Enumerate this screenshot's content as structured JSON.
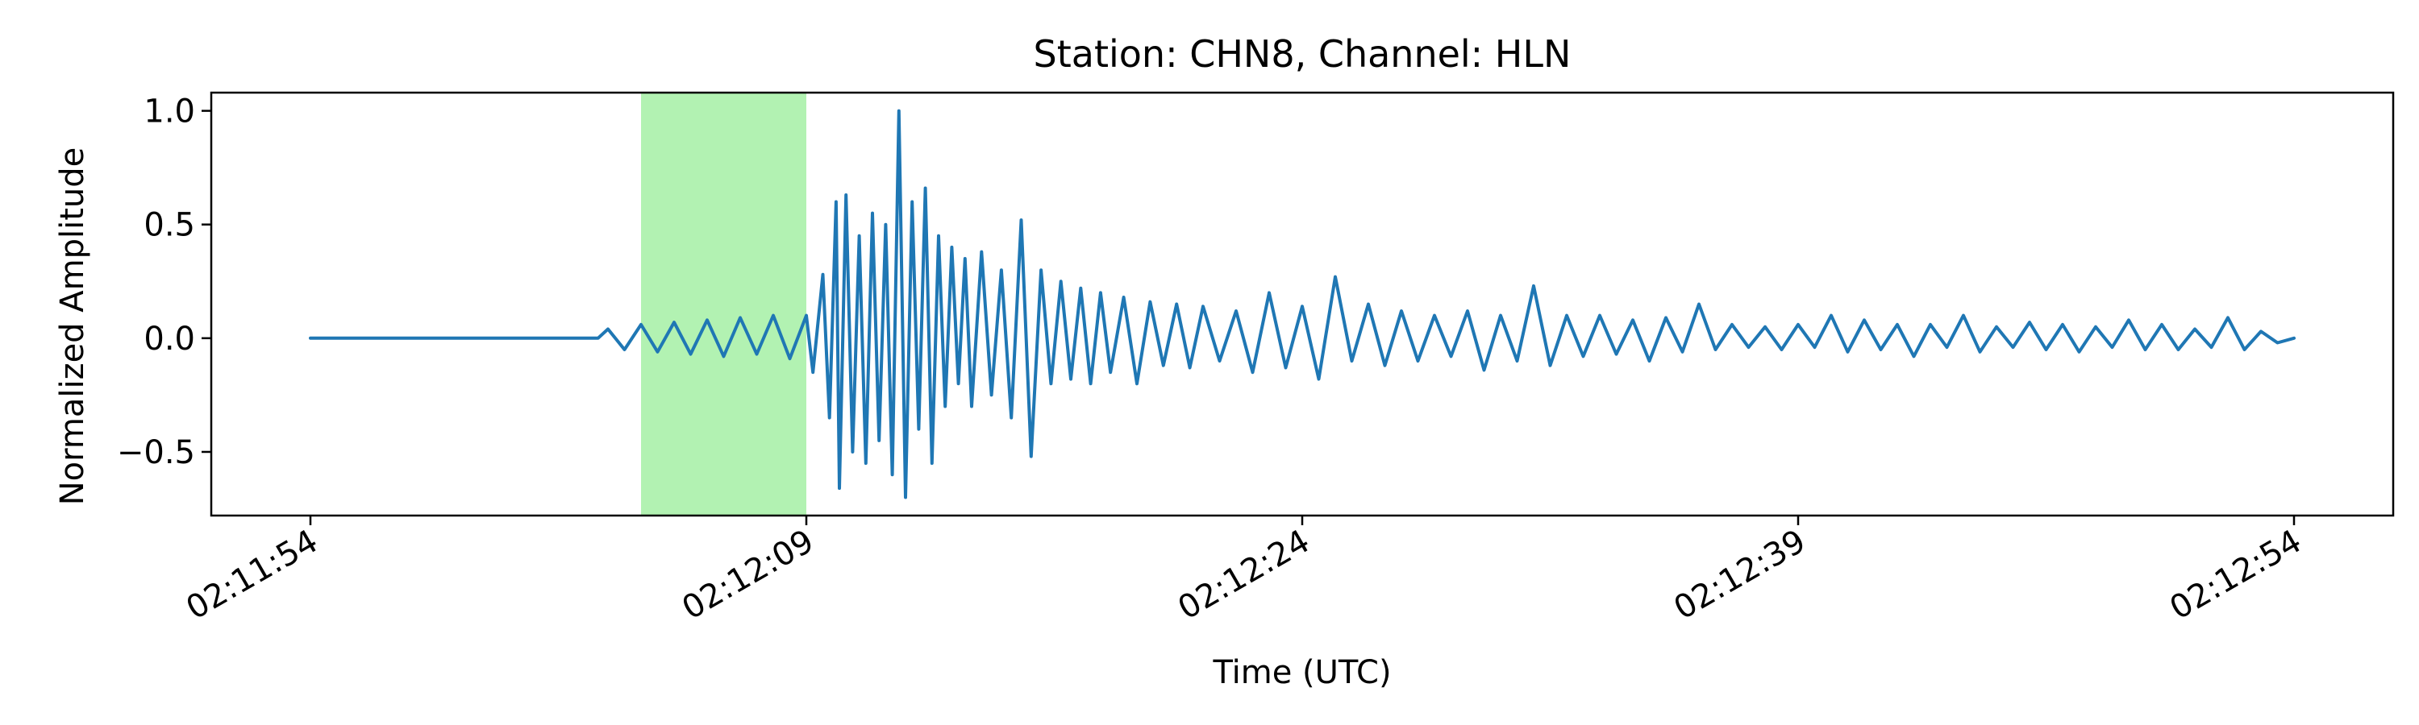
{
  "chart_data": {
    "type": "line",
    "title": "Station: CHN8, Channel: HLN",
    "xlabel": "Time (UTC)",
    "ylabel": "Normalized Amplitude",
    "x_unit": "seconds",
    "xlim": [
      -3,
      63
    ],
    "ylim": [
      -0.78,
      1.08
    ],
    "x_ticks": [
      {
        "t": 0,
        "label": "02:11:54"
      },
      {
        "t": 15,
        "label": "02:12:09"
      },
      {
        "t": 30,
        "label": "02:12:24"
      },
      {
        "t": 45,
        "label": "02:12:39"
      },
      {
        "t": 60,
        "label": "02:12:54"
      }
    ],
    "y_ticks": [
      {
        "v": -0.5,
        "label": "−0.5"
      },
      {
        "v": 0.0,
        "label": "0.0"
      },
      {
        "v": 0.5,
        "label": "0.5"
      },
      {
        "v": 1.0,
        "label": "1.0"
      }
    ],
    "grid": false,
    "shaded_window": {
      "start": 10,
      "end": 15,
      "color": "#b2f2b2"
    },
    "series": [
      {
        "color": "#1f77b4",
        "x": [
          0,
          8.7,
          9.0,
          9.5,
          10,
          10.5,
          11,
          11.5,
          12,
          12.5,
          13,
          13.5,
          14,
          14.5,
          15,
          15.2,
          15.5,
          15.7,
          15.9,
          16.0,
          16.2,
          16.4,
          16.6,
          16.8,
          17.0,
          17.2,
          17.4,
          17.6,
          17.8,
          18.0,
          18.2,
          18.4,
          18.6,
          18.8,
          19.0,
          19.2,
          19.4,
          19.6,
          19.8,
          20.0,
          20.3,
          20.6,
          20.9,
          21.2,
          21.5,
          21.8,
          22.1,
          22.4,
          22.7,
          23.0,
          23.3,
          23.6,
          23.9,
          24.2,
          24.6,
          25.0,
          25.4,
          25.8,
          26.2,
          26.6,
          27.0,
          27.5,
          28.0,
          28.5,
          29.0,
          29.5,
          30.0,
          30.5,
          31.0,
          31.5,
          32.0,
          32.5,
          33.0,
          33.5,
          34.0,
          34.5,
          35.0,
          35.5,
          36.0,
          36.5,
          37.0,
          37.5,
          38.0,
          38.5,
          39.0,
          39.5,
          40.0,
          40.5,
          41.0,
          41.5,
          42.0,
          42.5,
          43.0,
          43.5,
          44.0,
          44.5,
          45.0,
          45.5,
          46.0,
          46.5,
          47.0,
          47.5,
          48.0,
          48.5,
          49.0,
          49.5,
          50.0,
          50.5,
          51.0,
          51.5,
          52.0,
          52.5,
          53.0,
          53.5,
          54.0,
          54.5,
          55.0,
          55.5,
          56.0,
          56.5,
          57.0,
          57.5,
          58.0,
          58.5,
          59.0,
          59.5,
          60.0
        ],
        "y": [
          0.0,
          0.0,
          0.04,
          -0.05,
          0.06,
          -0.06,
          0.07,
          -0.07,
          0.08,
          -0.08,
          0.09,
          -0.07,
          0.1,
          -0.09,
          0.1,
          -0.15,
          0.28,
          -0.35,
          0.6,
          -0.66,
          0.63,
          -0.5,
          0.45,
          -0.55,
          0.55,
          -0.45,
          0.5,
          -0.6,
          1.0,
          -0.7,
          0.6,
          -0.4,
          0.66,
          -0.55,
          0.45,
          -0.3,
          0.4,
          -0.2,
          0.35,
          -0.3,
          0.38,
          -0.25,
          0.3,
          -0.35,
          0.52,
          -0.52,
          0.3,
          -0.2,
          0.25,
          -0.18,
          0.22,
          -0.2,
          0.2,
          -0.15,
          0.18,
          -0.2,
          0.16,
          -0.12,
          0.15,
          -0.13,
          0.14,
          -0.1,
          0.12,
          -0.15,
          0.2,
          -0.13,
          0.14,
          -0.18,
          0.27,
          -0.1,
          0.15,
          -0.12,
          0.12,
          -0.1,
          0.1,
          -0.08,
          0.12,
          -0.14,
          0.1,
          -0.1,
          0.23,
          -0.12,
          0.1,
          -0.08,
          0.1,
          -0.07,
          0.08,
          -0.1,
          0.09,
          -0.06,
          0.15,
          -0.05,
          0.06,
          -0.04,
          0.05,
          -0.05,
          0.06,
          -0.04,
          0.1,
          -0.06,
          0.08,
          -0.05,
          0.06,
          -0.08,
          0.06,
          -0.04,
          0.1,
          -0.06,
          0.05,
          -0.04,
          0.07,
          -0.05,
          0.06,
          -0.06,
          0.05,
          -0.04,
          0.08,
          -0.05,
          0.06,
          -0.05,
          0.04,
          -0.04,
          0.09,
          -0.05,
          0.03,
          -0.02,
          0.0
        ]
      }
    ]
  }
}
